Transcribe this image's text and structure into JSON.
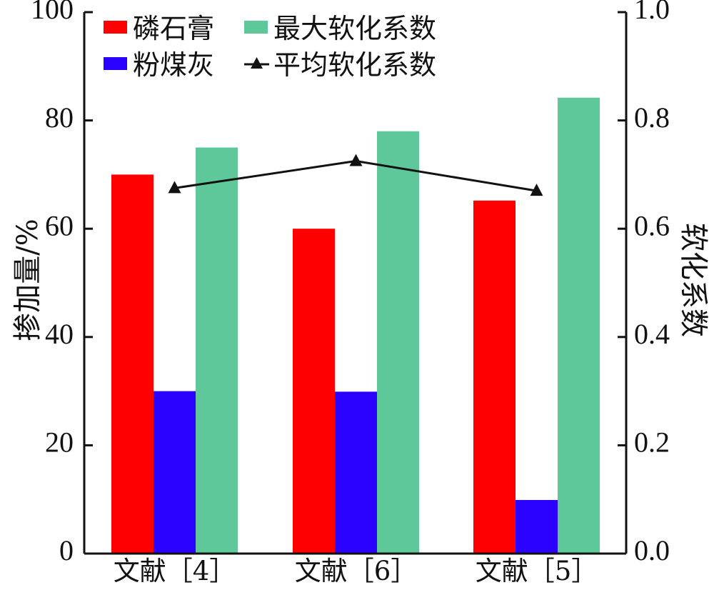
{
  "chart_data": {
    "type": "bar",
    "categories": [
      "文献［4］",
      "文献［6］",
      "文献［5］"
    ],
    "series": [
      {
        "name": "磷石膏",
        "axis": "left",
        "color": "#ff0000",
        "values": [
          70,
          60,
          65.2
        ]
      },
      {
        "name": "粉煤灰",
        "axis": "left",
        "color": "#2a00ff",
        "values": [
          30,
          29.9,
          9.9
        ]
      },
      {
        "name": "最大软化系数",
        "axis": "right",
        "color": "#5ec89b",
        "values": [
          0.75,
          0.78,
          0.842
        ]
      },
      {
        "name": "平均软化系数",
        "axis": "right",
        "type": "line",
        "marker": "triangle",
        "color": "#111111",
        "values": [
          0.675,
          0.725,
          0.67
        ]
      }
    ],
    "ylabel": "掺加量/%",
    "ylabel_right": "软化系数",
    "ylim": [
      0,
      100
    ],
    "ylim_right": [
      0.0,
      1.0
    ],
    "yticks": [
      "0",
      "20",
      "40",
      "60",
      "80",
      "100"
    ],
    "yticks_right": [
      "0.0",
      "0.2",
      "0.4",
      "0.6",
      "0.8",
      "1.0"
    ],
    "legend_position": "top",
    "grid": false
  }
}
